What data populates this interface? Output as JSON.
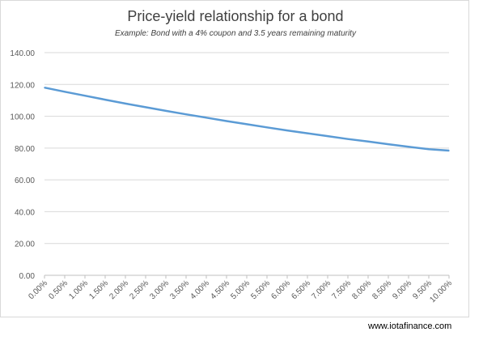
{
  "chart_data": {
    "type": "line",
    "title": "Price-yield relationship for a bond",
    "subtitle": "Example: Bond with a 4% coupon and 3.5 years remaining maturity",
    "categories": [
      "0.00%",
      "0.50%",
      "1.00%",
      "1.50%",
      "2.00%",
      "2.50%",
      "3.00%",
      "3.50%",
      "4.00%",
      "4.50%",
      "5.00%",
      "5.50%",
      "6.00%",
      "6.50%",
      "7.00%",
      "7.50%",
      "8.00%",
      "8.50%",
      "9.00%",
      "9.50%",
      "10.00%"
    ],
    "series": [
      {
        "values": [
          118.0,
          115.4,
          112.9,
          110.4,
          108.0,
          105.7,
          103.4,
          101.2,
          99.1,
          97.0,
          95.0,
          93.0,
          91.1,
          89.3,
          87.5,
          85.7,
          84.1,
          82.4,
          80.8,
          79.3,
          78.4
        ],
        "color": "#5b9bd5"
      }
    ],
    "ylim": [
      0,
      140
    ],
    "yticks": [
      "0.00",
      "20.00",
      "40.00",
      "60.00",
      "80.00",
      "100.00",
      "120.00",
      "140.00"
    ],
    "grid": true,
    "legend": "none"
  },
  "footer": "www.iotafinance.com"
}
